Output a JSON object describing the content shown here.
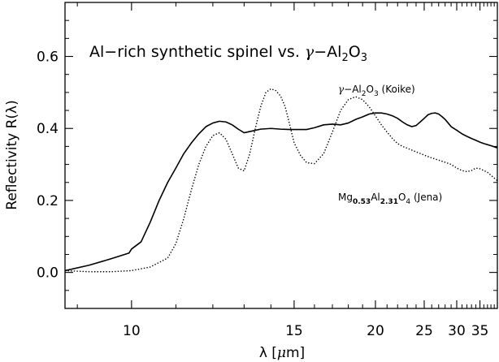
{
  "chart_data": {
    "type": "line",
    "title": {
      "prefix": "Al−rich synthetic spinel vs. ",
      "gamma": "γ",
      "dash": "−Al",
      "sub1": "2",
      "mid": "O",
      "sub2": "3"
    },
    "xlabel": {
      "lambda": "λ",
      "open": " [",
      "mu": "μ",
      "unit": "m]"
    },
    "ylabel": "Reflectivity R(λ)",
    "x_scale": "reciprocal",
    "xlim": [
      8.8,
      40
    ],
    "ylim": [
      -0.1,
      0.75
    ],
    "x_ticks": [
      10,
      15,
      20,
      25,
      30,
      35
    ],
    "x_tick_labels": [
      "10",
      "15",
      "20",
      "25",
      "30",
      "35"
    ],
    "y_ticks": [
      0.0,
      0.2,
      0.4,
      0.6
    ],
    "y_tick_labels": [
      "0.0",
      "0.2",
      "0.4",
      "0.6"
    ],
    "grid": false,
    "legend": "none",
    "series": [
      {
        "style": "solid",
        "label": {
          "gamma": "γ",
          "dash": "−Al",
          "s1": "2",
          "o": "O",
          "s2": "3",
          "rest": " (Koike)"
        },
        "x": [
          8.8,
          9.2,
          9.6,
          9.95,
          10.0,
          10.2,
          10.4,
          10.6,
          10.8,
          11.0,
          11.2,
          11.4,
          11.6,
          11.8,
          12.0,
          12.2,
          12.4,
          12.6,
          12.8,
          13.0,
          13.3,
          13.6,
          14.0,
          14.4,
          14.8,
          15.2,
          15.6,
          16.0,
          16.5,
          17.0,
          17.5,
          18.0,
          18.5,
          19.0,
          19.5,
          20.0,
          20.5,
          21.0,
          21.5,
          22.0,
          22.5,
          23.0,
          23.5,
          24.0,
          24.5,
          25.0,
          25.5,
          26.0,
          26.5,
          27.0,
          27.5,
          28.0,
          28.5,
          29.0,
          30.0,
          31.0,
          32.0,
          33.0,
          34.0,
          35.0,
          36.0,
          37.0,
          38.0,
          40.0
        ],
        "y": [
          0.005,
          0.02,
          0.038,
          0.054,
          0.065,
          0.085,
          0.14,
          0.2,
          0.25,
          0.29,
          0.33,
          0.36,
          0.385,
          0.405,
          0.415,
          0.42,
          0.418,
          0.41,
          0.398,
          0.388,
          0.393,
          0.398,
          0.4,
          0.398,
          0.397,
          0.397,
          0.397,
          0.402,
          0.41,
          0.412,
          0.41,
          0.415,
          0.425,
          0.432,
          0.44,
          0.443,
          0.443,
          0.44,
          0.435,
          0.428,
          0.418,
          0.41,
          0.405,
          0.408,
          0.418,
          0.428,
          0.438,
          0.442,
          0.443,
          0.44,
          0.433,
          0.425,
          0.415,
          0.405,
          0.395,
          0.385,
          0.378,
          0.372,
          0.367,
          0.362,
          0.358,
          0.355,
          0.352,
          0.346
        ]
      },
      {
        "style": "dotted",
        "label": {
          "pre": "Mg",
          "s1": "0.53",
          "mid": "Al",
          "s2": "2.31",
          "o": "O",
          "s3": "4",
          "rest": " (Jena)"
        },
        "x": [
          8.8,
          9.2,
          9.6,
          10.0,
          10.4,
          10.8,
          11.0,
          11.2,
          11.4,
          11.6,
          11.8,
          12.0,
          12.2,
          12.4,
          12.6,
          12.8,
          13.0,
          13.2,
          13.4,
          13.6,
          13.8,
          14.0,
          14.2,
          14.4,
          14.6,
          14.8,
          15.0,
          15.3,
          15.6,
          16.0,
          16.5,
          17.0,
          17.5,
          18.0,
          18.5,
          19.0,
          19.5,
          20.0,
          20.5,
          21.0,
          21.5,
          22.0,
          22.5,
          23.0,
          24.0,
          25.0,
          26.0,
          27.0,
          28.0,
          29.0,
          30.0,
          31.0,
          32.0,
          33.0,
          34.0,
          35.0,
          36.0,
          37.0,
          38.0,
          39.0,
          40.0
        ],
        "y": [
          0.005,
          0.002,
          0.002,
          0.005,
          0.015,
          0.04,
          0.08,
          0.15,
          0.23,
          0.3,
          0.35,
          0.38,
          0.388,
          0.37,
          0.33,
          0.29,
          0.282,
          0.33,
          0.4,
          0.46,
          0.5,
          0.51,
          0.505,
          0.49,
          0.46,
          0.41,
          0.36,
          0.325,
          0.305,
          0.302,
          0.33,
          0.39,
          0.45,
          0.48,
          0.488,
          0.48,
          0.46,
          0.435,
          0.41,
          0.39,
          0.372,
          0.358,
          0.35,
          0.345,
          0.335,
          0.326,
          0.318,
          0.312,
          0.306,
          0.3,
          0.29,
          0.283,
          0.28,
          0.283,
          0.29,
          0.288,
          0.283,
          0.278,
          0.27,
          0.262,
          0.255
        ]
      }
    ]
  }
}
